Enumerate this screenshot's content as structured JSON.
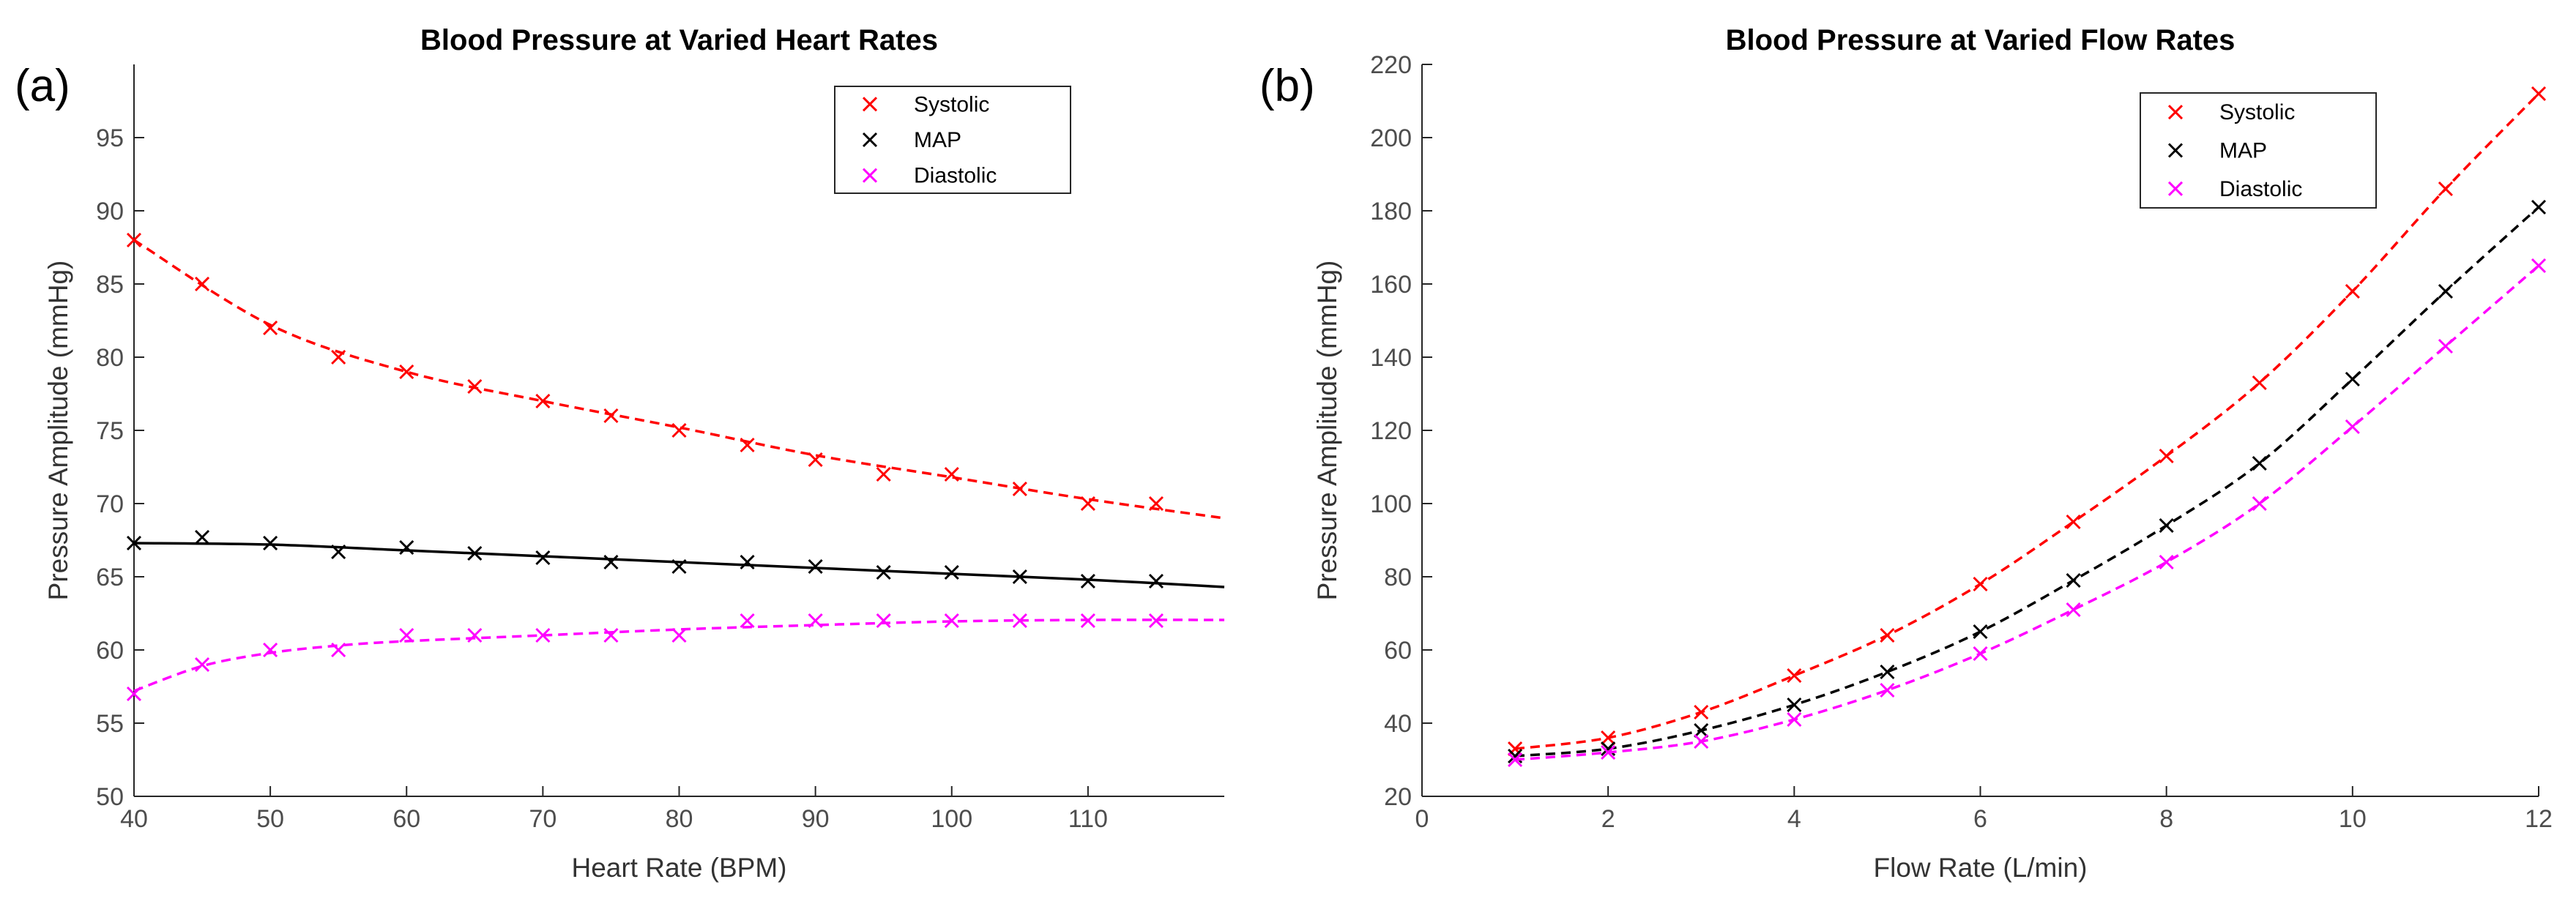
{
  "chart_data": [
    {
      "panel_label": "(a)",
      "type": "line",
      "title": "Blood Pressure at Varied Heart Rates",
      "xlabel": "Heart Rate (BPM)",
      "ylabel": "Pressure Amplitude (mmHg)",
      "xlim": [
        40,
        120
      ],
      "ylim": [
        50,
        100
      ],
      "xticks": [
        40,
        50,
        60,
        70,
        80,
        90,
        100,
        110
      ],
      "yticks": [
        50,
        55,
        60,
        65,
        70,
        75,
        80,
        85,
        90,
        95
      ],
      "legend_position": "top-right",
      "x": [
        40,
        45,
        50,
        55,
        60,
        65,
        70,
        75,
        80,
        85,
        90,
        95,
        100,
        105,
        110,
        115
      ],
      "series": [
        {
          "name": "Systolic",
          "color": "#ff0000",
          "marker": "x",
          "fit_style": "dashed",
          "values": [
            88,
            85,
            82,
            80,
            79,
            78,
            77,
            76,
            75,
            74,
            73,
            72,
            72,
            71,
            70,
            70
          ],
          "fit": {
            "x": [
              40,
              50,
              60,
              70,
              80,
              90,
              100,
              110,
              120
            ],
            "y": [
              88,
              82.2,
              79,
              77,
              75.2,
              73.3,
              71.8,
              70.3,
              69
            ]
          }
        },
        {
          "name": "MAP",
          "color": "#000000",
          "marker": "x",
          "fit_style": "solid",
          "values": [
            67.3,
            67.7,
            67.3,
            66.7,
            67,
            66.6,
            66.3,
            66,
            65.7,
            66,
            65.7,
            65.3,
            65.3,
            65,
            64.7,
            64.7
          ],
          "fit": {
            "x": [
              40,
              50,
              60,
              70,
              80,
              90,
              100,
              110,
              120
            ],
            "y": [
              67.3,
              67.2,
              66.8,
              66.4,
              66,
              65.6,
              65.2,
              64.8,
              64.3
            ]
          }
        },
        {
          "name": "Diastolic",
          "color": "#ff00ff",
          "marker": "x",
          "fit_style": "dashed",
          "values": [
            57,
            59,
            60,
            60,
            61,
            61,
            61,
            61,
            61,
            62,
            62,
            62,
            62,
            62,
            62,
            62
          ],
          "fit": {
            "x": [
              40,
              45,
              50,
              55,
              60,
              70,
              80,
              90,
              100,
              110,
              120
            ],
            "y": [
              57.2,
              58.9,
              59.8,
              60.3,
              60.6,
              61,
              61.4,
              61.7,
              61.95,
              62.05,
              62.05
            ]
          }
        }
      ]
    },
    {
      "panel_label": "(b)",
      "type": "line",
      "title": "Blood Pressure at Varied Flow Rates",
      "xlabel": "Flow Rate (L/min)",
      "ylabel": "Pressure Amplitude (mmHg)",
      "xlim": [
        0,
        12
      ],
      "ylim": [
        20,
        220
      ],
      "xticks": [
        0,
        2,
        4,
        6,
        8,
        10,
        12
      ],
      "yticks": [
        20,
        40,
        60,
        80,
        100,
        120,
        140,
        160,
        180,
        200,
        220
      ],
      "legend_position": "top-right",
      "x": [
        1,
        2,
        3,
        4,
        5,
        6,
        7,
        8,
        9,
        10,
        11,
        12
      ],
      "series": [
        {
          "name": "Systolic",
          "color": "#ff0000",
          "marker": "x",
          "fit_style": "dashed",
          "values": [
            33,
            36,
            43,
            53,
            64,
            78,
            95,
            113,
            133,
            158,
            186,
            212
          ],
          "fit": {
            "x": [
              1,
              2,
              3,
              4,
              5,
              6,
              7,
              8,
              9,
              10,
              11,
              12
            ],
            "y": [
              33,
              36,
              43,
              53,
              64,
              78,
              95,
              113,
              133,
              158,
              186,
              212
            ]
          }
        },
        {
          "name": "MAP",
          "color": "#000000",
          "marker": "x",
          "fit_style": "dashed",
          "values": [
            31,
            33,
            38,
            45,
            54,
            65,
            79,
            94,
            111,
            134,
            158,
            181
          ],
          "fit": {
            "x": [
              1,
              2,
              3,
              4,
              5,
              6,
              7,
              8,
              9,
              10,
              11,
              12
            ],
            "y": [
              31,
              33,
              38,
              45,
              54,
              65,
              79,
              94,
              111,
              134,
              158,
              181
            ]
          }
        },
        {
          "name": "Diastolic",
          "color": "#ff00ff",
          "marker": "x",
          "fit_style": "dashed",
          "values": [
            30,
            32,
            35,
            41,
            49,
            59,
            71,
            84,
            100,
            121,
            143,
            165
          ],
          "fit": {
            "x": [
              1,
              2,
              3,
              4,
              5,
              6,
              7,
              8,
              9,
              10,
              11,
              12
            ],
            "y": [
              30,
              32,
              35,
              41,
              49,
              59,
              71,
              84,
              100,
              121,
              143,
              165
            ]
          }
        }
      ]
    }
  ]
}
